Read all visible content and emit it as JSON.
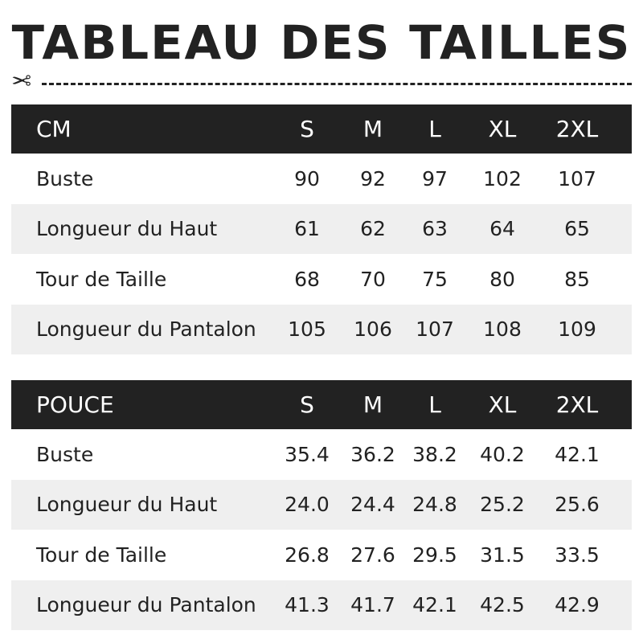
{
  "title": "TABLEAU DES TAILLES",
  "sizes": [
    "S",
    "M",
    "L",
    "XL",
    "2XL"
  ],
  "tables": [
    {
      "unit": "CM",
      "rows": [
        {
          "label": "Buste",
          "values": [
            "90",
            "92",
            "97",
            "102",
            "107"
          ]
        },
        {
          "label": "Longueur du Haut",
          "values": [
            "61",
            "62",
            "63",
            "64",
            "65"
          ]
        },
        {
          "label": "Tour de Taille",
          "values": [
            "68",
            "70",
            "75",
            "80",
            "85"
          ]
        },
        {
          "label": "Longueur du Pantalon",
          "values": [
            "105",
            "106",
            "107",
            "108",
            "109"
          ]
        }
      ]
    },
    {
      "unit": "POUCE",
      "rows": [
        {
          "label": "Buste",
          "values": [
            "35.4",
            "36.2",
            "38.2",
            "40.2",
            "42.1"
          ]
        },
        {
          "label": "Longueur du Haut",
          "values": [
            "24.0",
            "24.4",
            "24.8",
            "25.2",
            "25.6"
          ]
        },
        {
          "label": "Tour de Taille",
          "values": [
            "26.8",
            "27.6",
            "29.5",
            "31.5",
            "33.5"
          ]
        },
        {
          "label": "Longueur du Pantalon",
          "values": [
            "41.3",
            "41.7",
            "42.1",
            "42.5",
            "42.9"
          ]
        }
      ]
    }
  ],
  "colors": {
    "header_bg": "#222222",
    "stripe": "#efefef",
    "text": "#222222"
  },
  "icons": {
    "cut": "scissors-icon"
  }
}
